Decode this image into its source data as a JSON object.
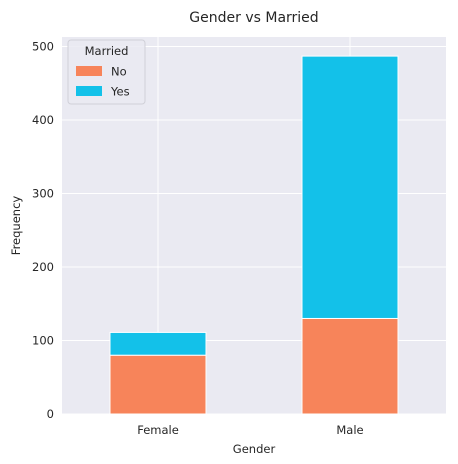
{
  "chart_data": {
    "type": "bar",
    "stacked": true,
    "title": "Gender vs Married",
    "xlabel": "Gender",
    "ylabel": "Frequency",
    "categories": [
      "Female",
      "Male"
    ],
    "series": [
      {
        "name": "No",
        "values": [
          80,
          130
        ],
        "color": "#f7845a"
      },
      {
        "name": "Yes",
        "values": [
          31,
          357
        ],
        "color": "#13c1e9"
      }
    ],
    "ylim": [
      0,
      513
    ],
    "yticks": [
      0,
      100,
      200,
      300,
      400,
      500
    ],
    "grid": true,
    "legend": {
      "title": "Married",
      "placement": "top-left"
    },
    "background_color": "#eaeaf2"
  }
}
